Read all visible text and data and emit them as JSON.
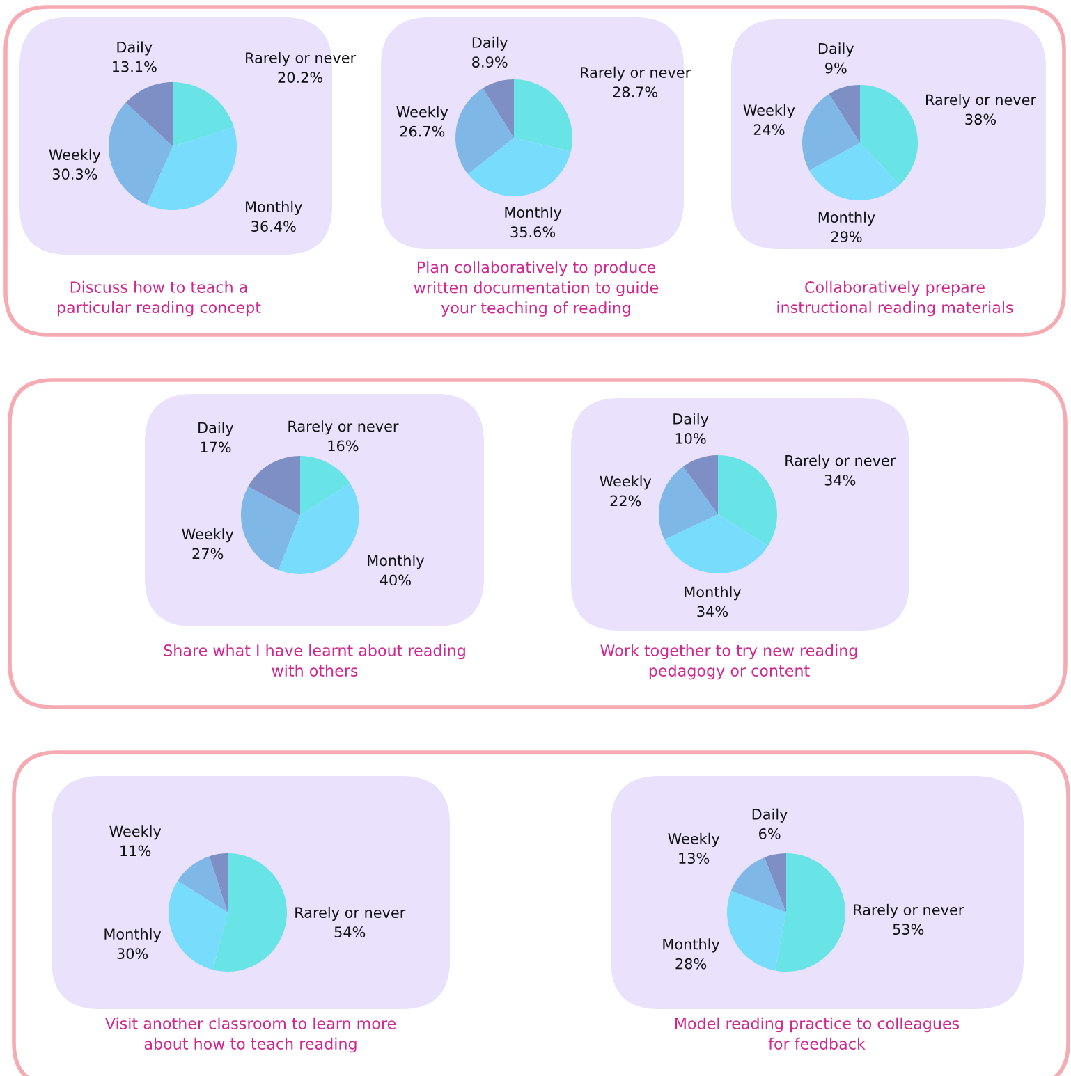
{
  "chart_data": [
    {
      "type": "pie",
      "title": "Discuss how to teach a\nparticular reading concept",
      "categories": [
        "Rarely or never",
        "Monthly",
        "Weekly",
        "Daily"
      ],
      "values": [
        20.2,
        36.4,
        30.3,
        13.1
      ],
      "value_labels": [
        "20.2%",
        "36.4%",
        "30.3%",
        "13.1%"
      ],
      "colors": [
        "#68e3e6",
        "#78ddfc",
        "#7fb8e6",
        "#7d8fc4"
      ]
    },
    {
      "type": "pie",
      "title": "Plan collaboratively to produce\nwritten documentation to guide\nyour teaching of reading",
      "categories": [
        "Rarely or never",
        "Monthly",
        "Weekly",
        "Daily"
      ],
      "values": [
        28.7,
        35.6,
        26.7,
        8.9
      ],
      "value_labels": [
        "28.7%",
        "35.6%",
        "26.7%",
        "8.9%"
      ],
      "colors": [
        "#68e3e6",
        "#78ddfc",
        "#7fb8e6",
        "#7d8fc4"
      ]
    },
    {
      "type": "pie",
      "title": "Collaboratively prepare\ninstructional reading materials",
      "categories": [
        "Rarely or never",
        "Monthly",
        "Weekly",
        "Daily"
      ],
      "values": [
        38,
        29,
        24,
        9
      ],
      "value_labels": [
        "38%",
        "29%",
        "24%",
        "9%"
      ],
      "colors": [
        "#68e3e6",
        "#78ddfc",
        "#7fb8e6",
        "#7d8fc4"
      ]
    },
    {
      "type": "pie",
      "title": "Share what I have learnt about reading\nwith others",
      "categories": [
        "Rarely or never",
        "Monthly",
        "Weekly",
        "Daily"
      ],
      "values": [
        16,
        40,
        27,
        17
      ],
      "value_labels": [
        "16%",
        "40%",
        "27%",
        "17%"
      ],
      "colors": [
        "#68e3e6",
        "#78ddfc",
        "#7fb8e6",
        "#7d8fc4"
      ]
    },
    {
      "type": "pie",
      "title": "Work together to try new reading\npedagogy or content",
      "categories": [
        "Rarely or never",
        "Monthly",
        "Weekly",
        "Daily"
      ],
      "values": [
        34,
        34,
        22,
        10
      ],
      "value_labels": [
        "34%",
        "34%",
        "22%",
        "10%"
      ],
      "colors": [
        "#68e3e6",
        "#78ddfc",
        "#7fb8e6",
        "#7d8fc4"
      ]
    },
    {
      "type": "pie",
      "title": "Visit another classroom to learn more\nabout how to teach reading",
      "categories": [
        "Rarely or never",
        "Monthly",
        "Weekly",
        null
      ],
      "values": [
        54,
        30,
        11,
        5
      ],
      "value_labels": [
        "54%",
        "30%",
        "11%",
        null
      ],
      "colors": [
        "#68e3e6",
        "#78ddfc",
        "#7fb8e6",
        "#7d8fc4"
      ]
    },
    {
      "type": "pie",
      "title": "Model reading practice to colleagues\nfor feedback",
      "categories": [
        "Rarely or never",
        "Monthly",
        "Weekly",
        "Daily"
      ],
      "values": [
        53,
        28,
        13,
        6
      ],
      "value_labels": [
        "53%",
        "28%",
        "13%",
        "6%"
      ],
      "colors": [
        "#68e3e6",
        "#78ddfc",
        "#7fb8e6",
        "#7d8fc4"
      ]
    }
  ]
}
